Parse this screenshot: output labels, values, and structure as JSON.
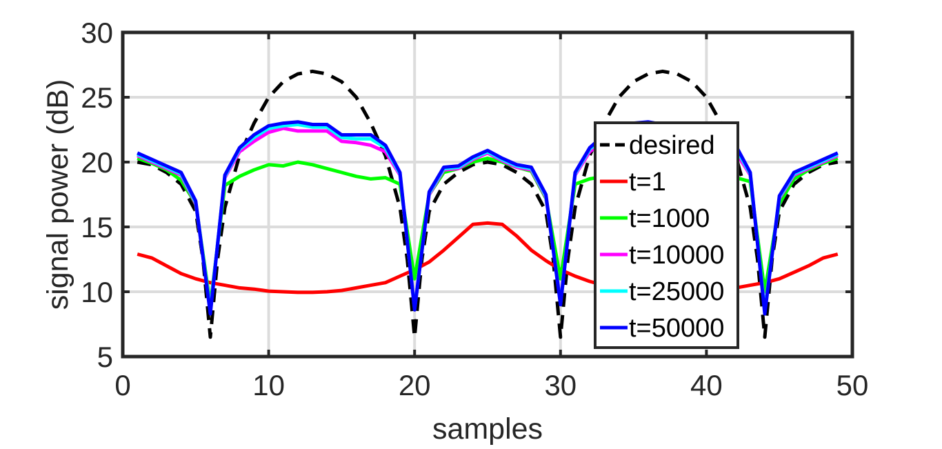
{
  "chart_data": {
    "type": "line",
    "title": "",
    "xlabel": "samples",
    "ylabel": "signal power (dB)",
    "xlim": [
      0,
      50
    ],
    "ylim": [
      5,
      30
    ],
    "xticks": [
      0,
      10,
      20,
      30,
      40,
      50
    ],
    "yticks": [
      5,
      10,
      15,
      20,
      25,
      30
    ],
    "grid": true,
    "legend_position": "lower-right",
    "series": [
      {
        "name": "desired",
        "color": "#000000",
        "style": "dashed",
        "x": [
          1,
          2,
          3,
          4,
          5,
          5.5,
          6,
          6.5,
          7,
          8,
          9,
          10,
          11,
          12,
          13,
          14,
          15,
          16,
          17,
          18,
          19,
          19.5,
          20,
          20.5,
          21,
          22,
          23,
          24,
          25,
          26,
          27,
          28,
          29,
          29.5,
          30,
          30.5,
          31,
          32,
          33,
          34,
          35,
          36,
          37,
          38,
          39,
          40,
          41,
          42,
          43,
          43.5,
          44,
          44.5,
          45,
          46,
          47,
          48,
          49
        ],
        "y": [
          20,
          19.8,
          19.2,
          18.3,
          16.2,
          12.5,
          6.5,
          12.5,
          16.5,
          20.5,
          23.0,
          25.0,
          26.2,
          26.8,
          27.0,
          26.8,
          26.2,
          25.0,
          23.0,
          20.5,
          16.5,
          12.5,
          6.5,
          12.5,
          16.2,
          18.3,
          19.2,
          19.8,
          20.0,
          19.8,
          19.2,
          18.3,
          16.2,
          12.5,
          6.5,
          12.5,
          16.5,
          20.5,
          23.0,
          25.0,
          26.2,
          26.8,
          27.0,
          26.8,
          26.2,
          25.0,
          23.0,
          20.5,
          16.5,
          12.5,
          6.5,
          12.5,
          16.2,
          18.3,
          19.2,
          19.8,
          20.0
        ]
      },
      {
        "name": "t=1",
        "color": "#ff0000",
        "style": "solid",
        "x": [
          1,
          2,
          3,
          4,
          5,
          6,
          7,
          8,
          9,
          10,
          11,
          12,
          13,
          14,
          15,
          16,
          17,
          18,
          19,
          20,
          21,
          22,
          23,
          24,
          25,
          26,
          27,
          28,
          29,
          30,
          31,
          32,
          33,
          34,
          35,
          36,
          37,
          38,
          39,
          40,
          41,
          42,
          43,
          44,
          45,
          46,
          47,
          48,
          49
        ],
        "y": [
          12.9,
          12.6,
          12.0,
          11.4,
          11.0,
          10.7,
          10.5,
          10.3,
          10.2,
          10.05,
          10.0,
          9.95,
          9.95,
          10.0,
          10.1,
          10.3,
          10.5,
          10.7,
          11.2,
          11.7,
          12.3,
          13.2,
          14.2,
          15.2,
          15.3,
          15.2,
          14.3,
          13.2,
          12.4,
          11.7,
          11.2,
          10.8,
          10.5,
          10.3,
          10.1,
          10.0,
          9.95,
          9.95,
          10.0,
          10.05,
          10.2,
          10.3,
          10.5,
          10.7,
          11.0,
          11.5,
          12.0,
          12.6,
          12.9
        ]
      },
      {
        "name": "t=1000",
        "color": "#00ff00",
        "style": "solid",
        "x": [
          1,
          2,
          3,
          4,
          5,
          6,
          7,
          8,
          9,
          10,
          11,
          12,
          13,
          14,
          15,
          16,
          17,
          18,
          19,
          20,
          21,
          22,
          23,
          24,
          25,
          26,
          27,
          28,
          29,
          30,
          31,
          32,
          33,
          34,
          35,
          36,
          37,
          38,
          39,
          40,
          41,
          42,
          43,
          44,
          45,
          46,
          47,
          48,
          49
        ],
        "y": [
          20.3,
          19.9,
          19.4,
          18.6,
          16.8,
          9.0,
          18.2,
          18.9,
          19.4,
          19.8,
          19.7,
          20.0,
          19.8,
          19.5,
          19.2,
          18.9,
          18.7,
          18.8,
          18.3,
          11.0,
          17.5,
          19.2,
          19.5,
          20.0,
          20.3,
          20.0,
          19.6,
          19.3,
          17.2,
          11.0,
          18.3,
          18.7,
          18.9,
          19.1,
          19.3,
          19.5,
          19.6,
          19.6,
          19.4,
          19.2,
          19.0,
          18.8,
          18.5,
          10.0,
          16.8,
          18.7,
          19.4,
          19.9,
          20.3
        ]
      },
      {
        "name": "t=10000",
        "color": "#ff00ff",
        "style": "solid",
        "x": [
          1,
          2,
          3,
          4,
          5,
          6,
          7,
          8,
          9,
          10,
          11,
          12,
          13,
          14,
          15,
          16,
          17,
          18,
          19,
          20,
          21,
          22,
          23,
          24,
          25,
          26,
          27,
          28,
          29,
          30,
          31,
          32,
          33,
          34,
          35,
          36,
          37,
          38,
          39,
          40,
          41,
          42,
          43,
          44,
          45,
          46,
          47,
          48,
          49
        ],
        "y": [
          20.5,
          20.0,
          19.5,
          19.0,
          16.8,
          8.6,
          18.8,
          20.8,
          21.6,
          22.3,
          22.6,
          22.4,
          22.4,
          22.4,
          21.6,
          21.5,
          21.3,
          20.8,
          19.0,
          8.8,
          17.5,
          19.4,
          19.5,
          20.2,
          20.7,
          20.1,
          19.6,
          19.4,
          17.3,
          9.2,
          19.0,
          20.8,
          21.6,
          22.3,
          22.6,
          22.4,
          22.4,
          22.4,
          21.6,
          21.5,
          21.3,
          20.8,
          19.0,
          8.6,
          17.2,
          19.0,
          19.5,
          20.0,
          20.5
        ]
      },
      {
        "name": "t=25000",
        "color": "#00ffff",
        "style": "solid",
        "x": [
          1,
          2,
          3,
          4,
          5,
          6,
          7,
          8,
          9,
          10,
          11,
          12,
          13,
          14,
          15,
          16,
          17,
          18,
          19,
          20,
          21,
          22,
          23,
          24,
          25,
          26,
          27,
          28,
          29,
          30,
          31,
          32,
          33,
          34,
          35,
          36,
          37,
          38,
          39,
          40,
          41,
          42,
          43,
          44,
          45,
          46,
          47,
          48,
          49
        ],
        "y": [
          20.6,
          20.1,
          19.6,
          19.1,
          16.9,
          8.5,
          18.9,
          21.0,
          21.9,
          22.6,
          22.8,
          22.9,
          22.7,
          22.7,
          21.9,
          21.8,
          21.8,
          21.1,
          19.1,
          8.7,
          17.6,
          19.5,
          19.6,
          20.3,
          20.8,
          20.2,
          19.7,
          19.5,
          17.4,
          9.1,
          19.1,
          21.0,
          21.9,
          22.6,
          22.8,
          22.9,
          22.7,
          22.7,
          21.9,
          21.8,
          21.8,
          21.1,
          19.1,
          8.5,
          17.3,
          19.1,
          19.6,
          20.1,
          20.6
        ]
      },
      {
        "name": "t=50000",
        "color": "#0000ff",
        "style": "solid",
        "x": [
          1,
          2,
          3,
          4,
          5,
          6,
          7,
          8,
          9,
          10,
          11,
          12,
          13,
          14,
          15,
          16,
          17,
          18,
          19,
          20,
          21,
          22,
          23,
          24,
          25,
          26,
          27,
          28,
          29,
          30,
          31,
          32,
          33,
          34,
          35,
          36,
          37,
          38,
          39,
          40,
          41,
          42,
          43,
          44,
          45,
          46,
          47,
          48,
          49
        ],
        "y": [
          20.7,
          20.2,
          19.7,
          19.2,
          17.0,
          8.3,
          19.0,
          21.1,
          22.1,
          22.8,
          23.0,
          23.1,
          22.9,
          22.9,
          22.1,
          22.1,
          22.1,
          21.3,
          19.2,
          8.6,
          17.7,
          19.6,
          19.7,
          20.4,
          20.9,
          20.3,
          19.8,
          19.6,
          17.5,
          9.0,
          19.2,
          21.1,
          22.1,
          22.8,
          23.0,
          23.1,
          22.9,
          22.9,
          22.1,
          22.1,
          22.1,
          21.3,
          19.2,
          8.3,
          17.4,
          19.2,
          19.7,
          20.2,
          20.7
        ]
      }
    ]
  }
}
